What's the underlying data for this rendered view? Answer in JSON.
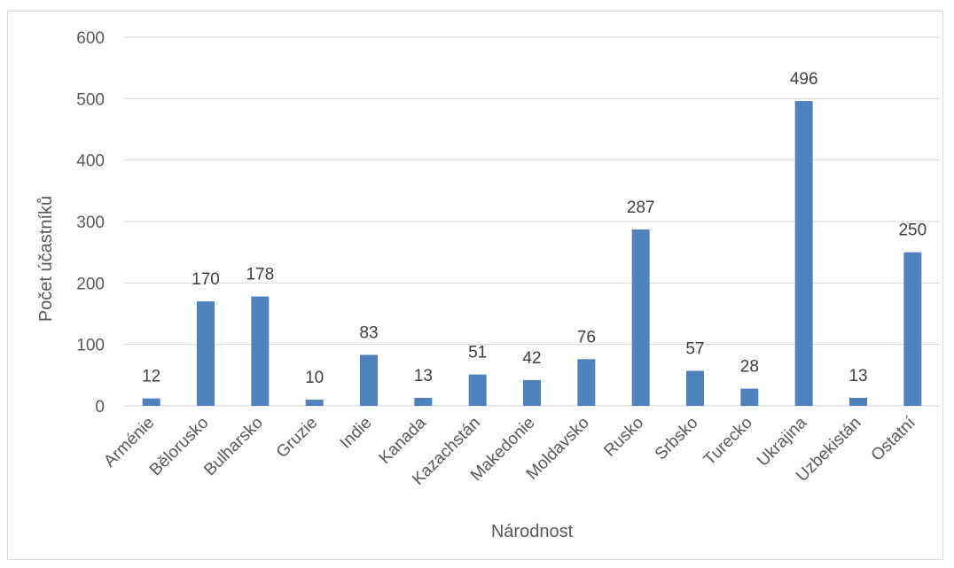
{
  "chart_data": {
    "type": "bar",
    "title": "",
    "xlabel": "Národnost",
    "ylabel": "Počet účastníků",
    "ylim": [
      0,
      600
    ],
    "yticks": [
      0,
      100,
      200,
      300,
      400,
      500,
      600
    ],
    "grid": true,
    "legend": "none",
    "bar_color": "#4f81bd",
    "categories": [
      "Arménie",
      "Bělorusko",
      "Bulharsko",
      "Gruzie",
      "Indie",
      "Kanada",
      "Kazachstán",
      "Makedonie",
      "Moldavsko",
      "Rusko",
      "Srbsko",
      "Turecko",
      "Ukrajina",
      "Uzbekistán",
      "Ostatní"
    ],
    "values": [
      12,
      170,
      178,
      10,
      83,
      13,
      51,
      42,
      76,
      287,
      57,
      28,
      496,
      13,
      250
    ]
  }
}
